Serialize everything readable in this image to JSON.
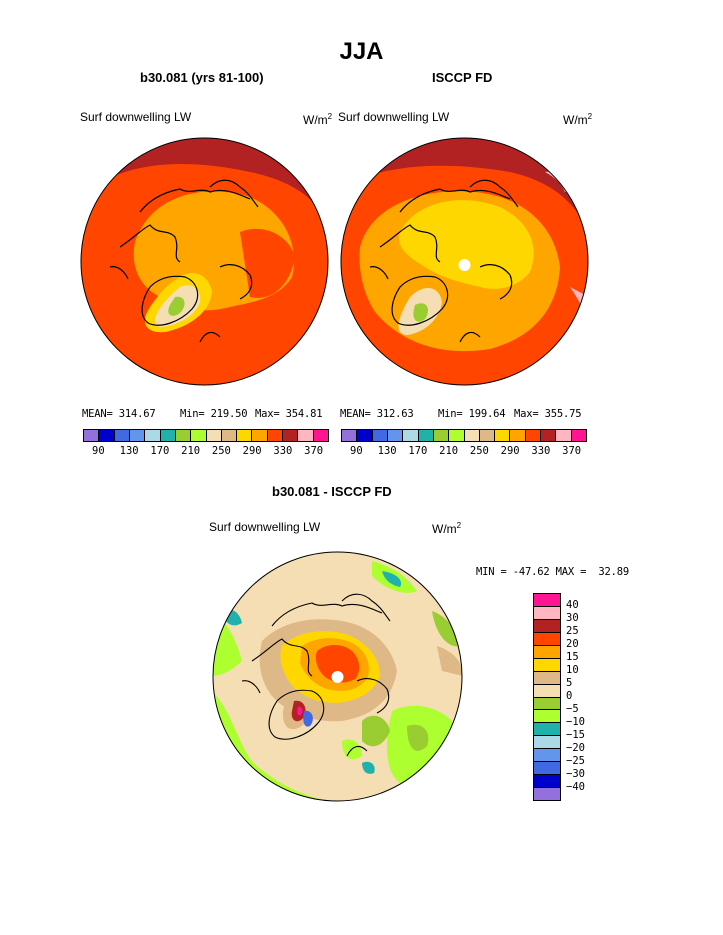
{
  "page_title": "JJA",
  "panels": [
    {
      "title": "b30.081 (yrs 81-100)",
      "variable": "Surf downwelling LW",
      "units": "W/m",
      "units_sup": "2",
      "mean_text": "MEAN= 314.67",
      "min_text": "Min= 219.50",
      "max_text": "Max= 354.81"
    },
    {
      "title": "ISCCP FD",
      "variable": "Surf downwelling LW",
      "units": "W/m",
      "units_sup": "2",
      "mean_text": "MEAN= 312.63",
      "min_text": "Min= 199.64",
      "max_text": "Max= 355.75"
    },
    {
      "title": "b30.081 - ISCCP FD",
      "variable": "Surf downwelling LW",
      "units": "W/m",
      "units_sup": "2",
      "minmax_text": "MIN = -47.62 MAX =  32.89"
    }
  ],
  "colorbar_top": {
    "colors": [
      "#9370db",
      "#0000cd",
      "#4169e1",
      "#6495ed",
      "#add8e6",
      "#20b2aa",
      "#9acd32",
      "#adff2f",
      "#f5deb3",
      "#deb887",
      "#ffd700",
      "#ffa500",
      "#ff4500",
      "#b22222",
      "#ffb6c1",
      "#ff1493"
    ],
    "ticks": [
      "90",
      "130",
      "170",
      "210",
      "250",
      "290",
      "330",
      "370"
    ]
  },
  "colorbar_diff": {
    "colors": [
      "#ff1493",
      "#ffb6c1",
      "#b22222",
      "#ff4500",
      "#ffa500",
      "#ffd700",
      "#deb887",
      "#f5deb3",
      "#9acd32",
      "#adff2f",
      "#20b2aa",
      "#add8e6",
      "#6495ed",
      "#4169e1",
      "#0000cd",
      "#9370db"
    ],
    "ticks": [
      "40",
      "30",
      "25",
      "20",
      "15",
      "10",
      "5",
      "0",
      "−5",
      "−10",
      "−15",
      "−20",
      "−25",
      "−30",
      "−40"
    ]
  },
  "chart_data": [
    {
      "type": "heatmap",
      "title": "b30.081 (yrs 81-100)",
      "subtitle": "Surf downwelling LW",
      "units": "W/m2",
      "projection": "polar stereographic (Arctic)",
      "levels": [
        90,
        110,
        130,
        150,
        170,
        190,
        210,
        230,
        250,
        270,
        290,
        310,
        330,
        350,
        370
      ],
      "mean": 314.67,
      "min": 219.5,
      "max": 354.81
    },
    {
      "type": "heatmap",
      "title": "ISCCP FD",
      "subtitle": "Surf downwelling LW",
      "units": "W/m2",
      "projection": "polar stereographic (Arctic)",
      "levels": [
        90,
        110,
        130,
        150,
        170,
        190,
        210,
        230,
        250,
        270,
        290,
        310,
        330,
        350,
        370
      ],
      "mean": 312.63,
      "min": 199.64,
      "max": 355.75
    },
    {
      "type": "heatmap",
      "title": "b30.081 - ISCCP FD",
      "subtitle": "Surf downwelling LW",
      "units": "W/m2",
      "projection": "polar stereographic (Arctic)",
      "levels": [
        -40,
        -30,
        -25,
        -20,
        -15,
        -10,
        -5,
        0,
        5,
        10,
        15,
        20,
        25,
        30,
        40
      ],
      "min": -47.62,
      "max": 32.89
    }
  ]
}
